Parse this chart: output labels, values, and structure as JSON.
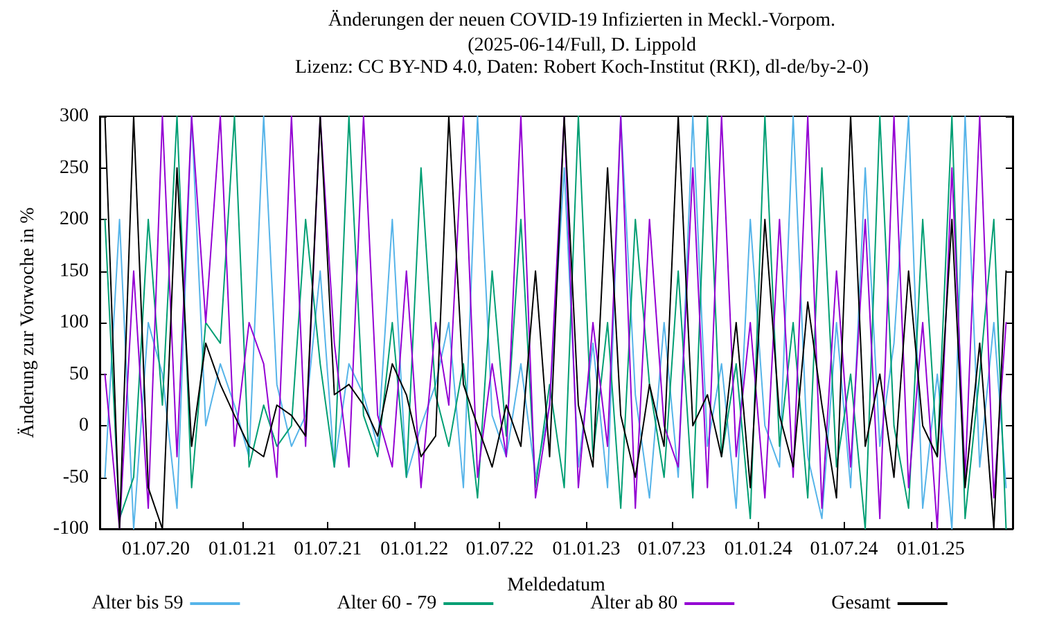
{
  "chart_data": {
    "type": "line",
    "title": "Änderungen der neuen COVID-19 Infizierten in Meckl.-Vorpom.",
    "subtitle": "(2025-06-14/Full, D. Lippold\nLizenz: CC BY-ND 4.0, Daten: Robert Koch-Institut (RKI), dl-de/by-2-0)",
    "xlabel": "Meldedatum",
    "ylabel": "Änderung zur Vorwoche in %",
    "x": [
      "2020-03-15",
      "2020-04-15",
      "2020-05-15",
      "2020-06-15",
      "2020-07-15",
      "2020-08-15",
      "2020-09-15",
      "2020-10-15",
      "2020-11-15",
      "2020-12-15",
      "2021-01-15",
      "2021-02-15",
      "2021-03-15",
      "2021-04-15",
      "2021-05-15",
      "2021-06-15",
      "2021-07-15",
      "2021-08-15",
      "2021-09-15",
      "2021-10-15",
      "2021-11-15",
      "2021-12-15",
      "2022-01-15",
      "2022-02-15",
      "2022-03-15",
      "2022-04-15",
      "2022-05-15",
      "2022-06-15",
      "2022-07-15",
      "2022-08-15",
      "2022-09-15",
      "2022-10-15",
      "2022-11-15",
      "2022-12-15",
      "2023-01-15",
      "2023-02-15",
      "2023-03-15",
      "2023-04-15",
      "2023-05-15",
      "2023-06-15",
      "2023-07-15",
      "2023-08-15",
      "2023-09-15",
      "2023-10-15",
      "2023-11-15",
      "2023-12-15",
      "2024-01-15",
      "2024-02-15",
      "2024-03-15",
      "2024-04-15",
      "2024-05-15",
      "2024-06-15",
      "2024-07-15",
      "2024-08-15",
      "2024-09-15",
      "2024-10-15",
      "2024-11-15",
      "2024-12-15",
      "2025-01-15",
      "2025-02-15",
      "2025-03-15",
      "2025-04-15",
      "2025-05-15",
      "2025-06-10"
    ],
    "series": [
      {
        "name": "Alter bis 59",
        "color": "#56b4e9",
        "values": [
          -50,
          200,
          -100,
          100,
          50,
          -80,
          300,
          0,
          60,
          20,
          -30,
          300,
          40,
          -20,
          10,
          150,
          -40,
          60,
          30,
          -20,
          200,
          -50,
          0,
          40,
          100,
          -60,
          300,
          10,
          -30,
          60,
          -50,
          20,
          250,
          -40,
          80,
          -60,
          300,
          30,
          -70,
          100,
          -50,
          300,
          -20,
          60,
          -80,
          200,
          0,
          -40,
          300,
          -30,
          -90,
          100,
          -60,
          250,
          -20,
          80,
          300,
          -80,
          50,
          -100,
          300,
          -40,
          100,
          -60
        ]
      },
      {
        "name": "Alter 60 - 79",
        "color": "#009e73",
        "values": [
          200,
          -90,
          -50,
          200,
          20,
          300,
          -60,
          100,
          80,
          300,
          -40,
          20,
          -20,
          0,
          200,
          60,
          -40,
          300,
          10,
          -30,
          100,
          -50,
          250,
          30,
          -20,
          60,
          -70,
          150,
          -10,
          200,
          -60,
          40,
          -60,
          300,
          -30,
          100,
          -80,
          200,
          40,
          -50,
          150,
          -70,
          300,
          -30,
          60,
          -90,
          300,
          -20,
          100,
          -70,
          250,
          -40,
          50,
          -100,
          300,
          0,
          -80,
          200,
          -30,
          300,
          -90,
          50,
          200,
          -100
        ]
      },
      {
        "name": "Alter ab 80",
        "color": "#9400d3",
        "values": [
          50,
          -100,
          150,
          -80,
          300,
          -30,
          300,
          100,
          300,
          -20,
          100,
          60,
          -50,
          300,
          -20,
          300,
          80,
          -40,
          300,
          10,
          -40,
          150,
          -60,
          100,
          20,
          300,
          -50,
          60,
          -30,
          300,
          -70,
          20,
          300,
          -60,
          100,
          -20,
          300,
          -80,
          200,
          0,
          -40,
          250,
          -60,
          300,
          -30,
          100,
          -70,
          200,
          -50,
          300,
          -80,
          150,
          -40,
          200,
          -90,
          300,
          -60,
          100,
          -100,
          250,
          -50,
          300,
          -70,
          100
        ]
      },
      {
        "name": "Gesamt",
        "color": "#000000",
        "values": [
          300,
          -100,
          300,
          -60,
          -100,
          250,
          -20,
          80,
          40,
          10,
          -20,
          -30,
          20,
          10,
          -10,
          300,
          30,
          40,
          20,
          -10,
          60,
          30,
          -30,
          -10,
          300,
          40,
          0,
          -40,
          20,
          -20,
          150,
          -30,
          300,
          20,
          -40,
          250,
          10,
          -50,
          40,
          -20,
          300,
          0,
          30,
          -30,
          100,
          -60,
          200,
          10,
          -40,
          120,
          20,
          -70,
          300,
          -20,
          50,
          -50,
          150,
          0,
          -30,
          200,
          -60,
          80,
          -100,
          150
        ]
      }
    ],
    "xlim": [
      "2020-03-04",
      "2025-06-24"
    ],
    "xticks": [
      {
        "value": "2020-07-01",
        "label": "01.07.20"
      },
      {
        "value": "2021-01-01",
        "label": "01.01.21"
      },
      {
        "value": "2021-07-01",
        "label": "01.07.21"
      },
      {
        "value": "2022-01-01",
        "label": "01.01.22"
      },
      {
        "value": "2022-07-01",
        "label": "01.07.22"
      },
      {
        "value": "2023-01-01",
        "label": "01.01.23"
      },
      {
        "value": "2023-07-01",
        "label": "01.07.23"
      },
      {
        "value": "2024-01-01",
        "label": "01.01.24"
      },
      {
        "value": "2024-07-01",
        "label": "01.07.24"
      },
      {
        "value": "2025-01-01",
        "label": "01.01.25"
      }
    ],
    "ylim": [
      -100,
      300
    ],
    "yticks": [
      -100,
      -50,
      0,
      50,
      100,
      150,
      200,
      250,
      300
    ],
    "grid": false,
    "legend": "bottom",
    "marker": "none",
    "line_style": "solid"
  }
}
